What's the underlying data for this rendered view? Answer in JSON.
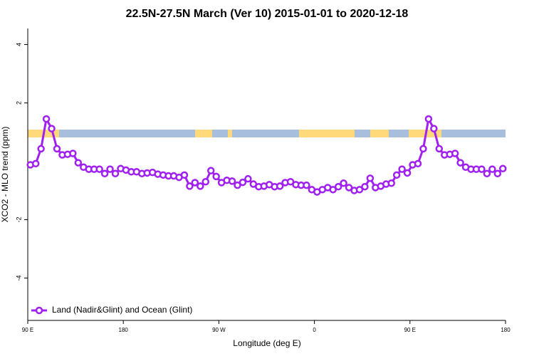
{
  "chart_data": {
    "type": "line",
    "title": "22.5N-27.5N March (Ver 10)   2015-01-01 to 2020-12-18",
    "x_label": "Longitude (deg E)",
    "y_label": "XCO2 - MLO trend (ppm)",
    "x": [
      92.5,
      97.5,
      102.5,
      107.5,
      112.5,
      117.5,
      122.5,
      127.5,
      132.5,
      137.5,
      142.5,
      147.5,
      152.5,
      157.5,
      162.5,
      167.5,
      172.5,
      177.5,
      182.5,
      187.5,
      192.5,
      197.5,
      202.5,
      207.5,
      212.5,
      217.5,
      222.5,
      227.5,
      232.5,
      237.5,
      242.5,
      247.5,
      252.5,
      257.5,
      262.5,
      267.5,
      272.5,
      277.5,
      282.5,
      287.5,
      292.5,
      297.5,
      302.5,
      307.5,
      312.5,
      317.5,
      322.5,
      327.5,
      332.5,
      337.5,
      342.5,
      347.5,
      352.5,
      357.5,
      362.5,
      367.5,
      372.5,
      377.5,
      382.5,
      387.5,
      392.5,
      397.5,
      402.5,
      407.5,
      412.5,
      417.5,
      422.5,
      427.5,
      432.5,
      437.5,
      442.5,
      447.5,
      452.5,
      457.5,
      462.5,
      467.5,
      472.5,
      477.5,
      482.5,
      487.5,
      492.5,
      497.5,
      502.5,
      507.5,
      512.5,
      517.5,
      522.5,
      527.5,
      532.5,
      537.5
    ],
    "series": [
      {
        "name": "Land (Nadir&Glint) and Ocean (Glint)",
        "color": "#a020f0",
        "values": [
          -0.12,
          -0.08,
          0.43,
          1.45,
          1.12,
          0.43,
          0.22,
          0.24,
          0.27,
          -0.05,
          -0.2,
          -0.27,
          -0.27,
          -0.27,
          -0.42,
          -0.27,
          -0.42,
          -0.25,
          -0.3,
          -0.36,
          -0.36,
          -0.42,
          -0.4,
          -0.38,
          -0.44,
          -0.47,
          -0.5,
          -0.5,
          -0.55,
          -0.47,
          -0.85,
          -0.73,
          -0.85,
          -0.7,
          -0.32,
          -0.52,
          -0.73,
          -0.65,
          -0.68,
          -0.82,
          -0.72,
          -0.6,
          -0.78,
          -0.87,
          -0.85,
          -0.8,
          -0.87,
          -0.85,
          -0.73,
          -0.7,
          -0.8,
          -0.82,
          -0.82,
          -0.97,
          -1.05,
          -0.97,
          -0.9,
          -0.97,
          -0.87,
          -0.75,
          -0.9,
          -1.0,
          -0.97,
          -0.87,
          -0.58,
          -0.9,
          -0.85,
          -0.78,
          -0.75,
          -0.47,
          -0.27,
          -0.4,
          -0.12,
          -0.08,
          0.43,
          1.45,
          1.12,
          0.43,
          0.22,
          0.24,
          0.27,
          -0.05,
          -0.2,
          -0.27,
          -0.27,
          -0.27,
          -0.42,
          -0.27,
          -0.42,
          -0.25
        ]
      }
    ],
    "xlim": [
      90,
      540
    ],
    "xticks": [
      {
        "value": 90,
        "label": "90 E"
      },
      180,
      {
        "value": 270,
        "label": "90 W"
      },
      {
        "value": 360,
        "label": "0"
      },
      {
        "value": 450,
        "label": "90 E"
      },
      {
        "value": 540,
        "label": "180"
      }
    ],
    "ylim": [
      -5.45,
      4.55
    ],
    "yticks": [
      -4,
      -2,
      2,
      4
    ],
    "legend": "bottom-left"
  }
}
